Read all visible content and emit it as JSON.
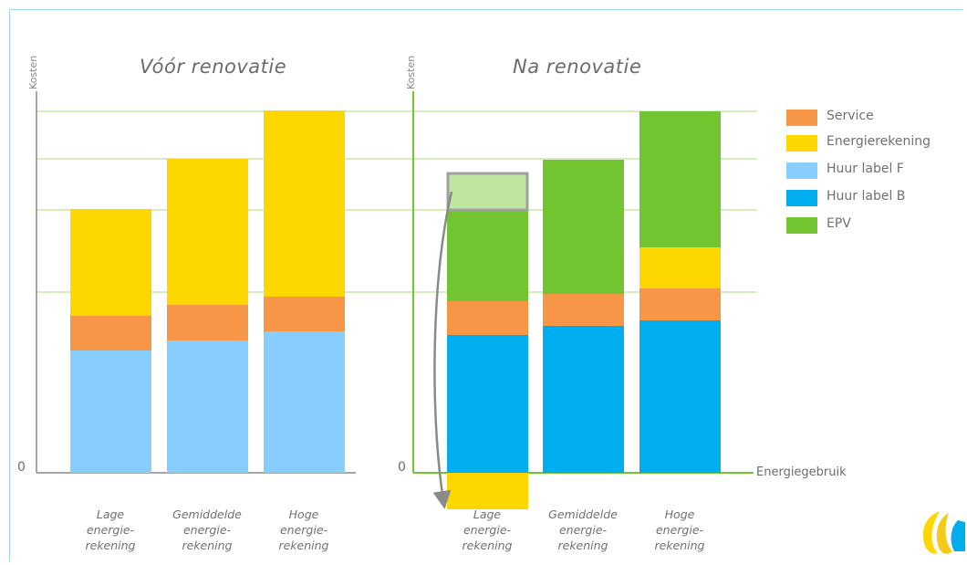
{
  "colors": {
    "service": "#f79646",
    "energierekening": "#ffd700",
    "huur_label_f": "#87ceff",
    "huur_label_b": "#00aeef",
    "epv": "#72c531",
    "epv_light": "#bfe5a0",
    "grid": "#a8dc7a",
    "axis_left": "#8a8a8a",
    "axis_right": "#72c531"
  },
  "chart_data": [
    {
      "type": "bar",
      "stacked": true,
      "title": "Vóór renovatie",
      "ylabel": "Kosten",
      "zero_label": "0",
      "categories": [
        "Lage\nenergie-\nrekening",
        "Gemiddelde\nenergie-\nrekening",
        "Hoge\nenergie-\nrekening"
      ],
      "series": [
        {
          "key": "huur_label_f",
          "values": [
            134,
            145,
            155
          ]
        },
        {
          "key": "service",
          "values": [
            38,
            39,
            38
          ]
        },
        {
          "key": "energierekening",
          "values": [
            117,
            160,
            204
          ]
        }
      ],
      "ylim": [
        0,
        400
      ]
    },
    {
      "type": "bar",
      "stacked": true,
      "title": "Na renovatie",
      "ylabel": "Kosten",
      "zero_label": "0",
      "xlabel": "Energiegebruik",
      "categories": [
        "Lage\nenergie-\nrekening",
        "Gemiddelde\nenergie-\nrekening",
        "Hoge\nenergie-\nrekening"
      ],
      "series": [
        {
          "key": "huur_label_b",
          "values": [
            151,
            161,
            167
          ]
        },
        {
          "key": "service",
          "values": [
            37,
            35,
            35
          ]
        },
        {
          "key": "energierekening",
          "values": [
            -40,
            0,
            45
          ]
        },
        {
          "key": "epv",
          "values": [
            140,
            147,
            149
          ]
        }
      ],
      "highlight": {
        "category_index": 0,
        "from": 288,
        "to": 328
      },
      "ylim": [
        -45,
        400
      ]
    }
  ],
  "legend": [
    {
      "key": "service",
      "label": "Service"
    },
    {
      "key": "energierekening",
      "label": "Energierekening"
    },
    {
      "key": "huur_label_f",
      "label": "Huur label F"
    },
    {
      "key": "huur_label_b",
      "label": "Huur label B"
    },
    {
      "key": "epv",
      "label": "EPV"
    }
  ]
}
